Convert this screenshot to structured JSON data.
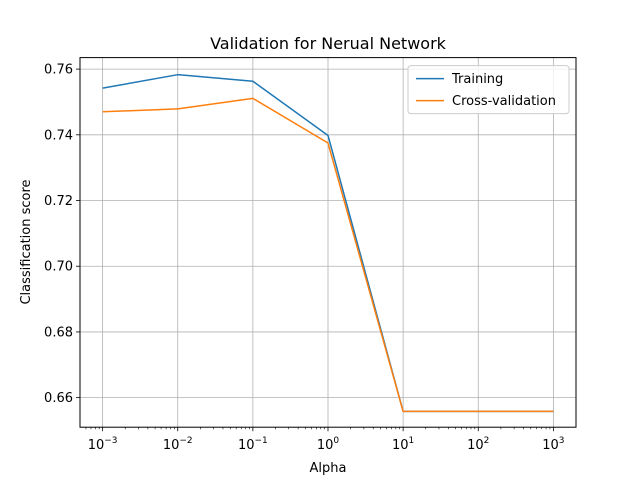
{
  "chart_data": {
    "type": "line",
    "title": "Validation for Nerual Network",
    "xlabel": "Alpha",
    "ylabel": "Classification score",
    "x_scale": "log",
    "x": [
      0.001,
      0.01,
      0.1,
      1,
      10,
      100,
      1000
    ],
    "xticks": [
      {
        "value": 0.001,
        "base": "10",
        "exp": "−3"
      },
      {
        "value": 0.01,
        "base": "10",
        "exp": "−2"
      },
      {
        "value": 0.1,
        "base": "10",
        "exp": "−1"
      },
      {
        "value": 1,
        "base": "10",
        "exp": "0"
      },
      {
        "value": 10,
        "base": "10",
        "exp": "1"
      },
      {
        "value": 100,
        "base": "10",
        "exp": "2"
      },
      {
        "value": 1000,
        "base": "10",
        "exp": "3"
      }
    ],
    "yticks": [
      {
        "value": 0.66,
        "label": "0.66"
      },
      {
        "value": 0.68,
        "label": "0.68"
      },
      {
        "value": 0.7,
        "label": "0.70"
      },
      {
        "value": 0.72,
        "label": "0.72"
      },
      {
        "value": 0.74,
        "label": "0.74"
      },
      {
        "value": 0.76,
        "label": "0.76"
      }
    ],
    "xlim": [
      0.0005,
      2000
    ],
    "ylim": [
      0.651,
      0.7635
    ],
    "grid": true,
    "legend_position": "top-right",
    "series": [
      {
        "name": "Training",
        "color": "#1f77b4",
        "values": [
          0.7542,
          0.7583,
          0.7563,
          0.7398,
          0.6558,
          0.6558,
          0.6558
        ]
      },
      {
        "name": "Cross-validation",
        "color": "#ff7f0e",
        "values": [
          0.747,
          0.7479,
          0.7511,
          0.7375,
          0.6558,
          0.6558,
          0.6558
        ]
      }
    ]
  }
}
